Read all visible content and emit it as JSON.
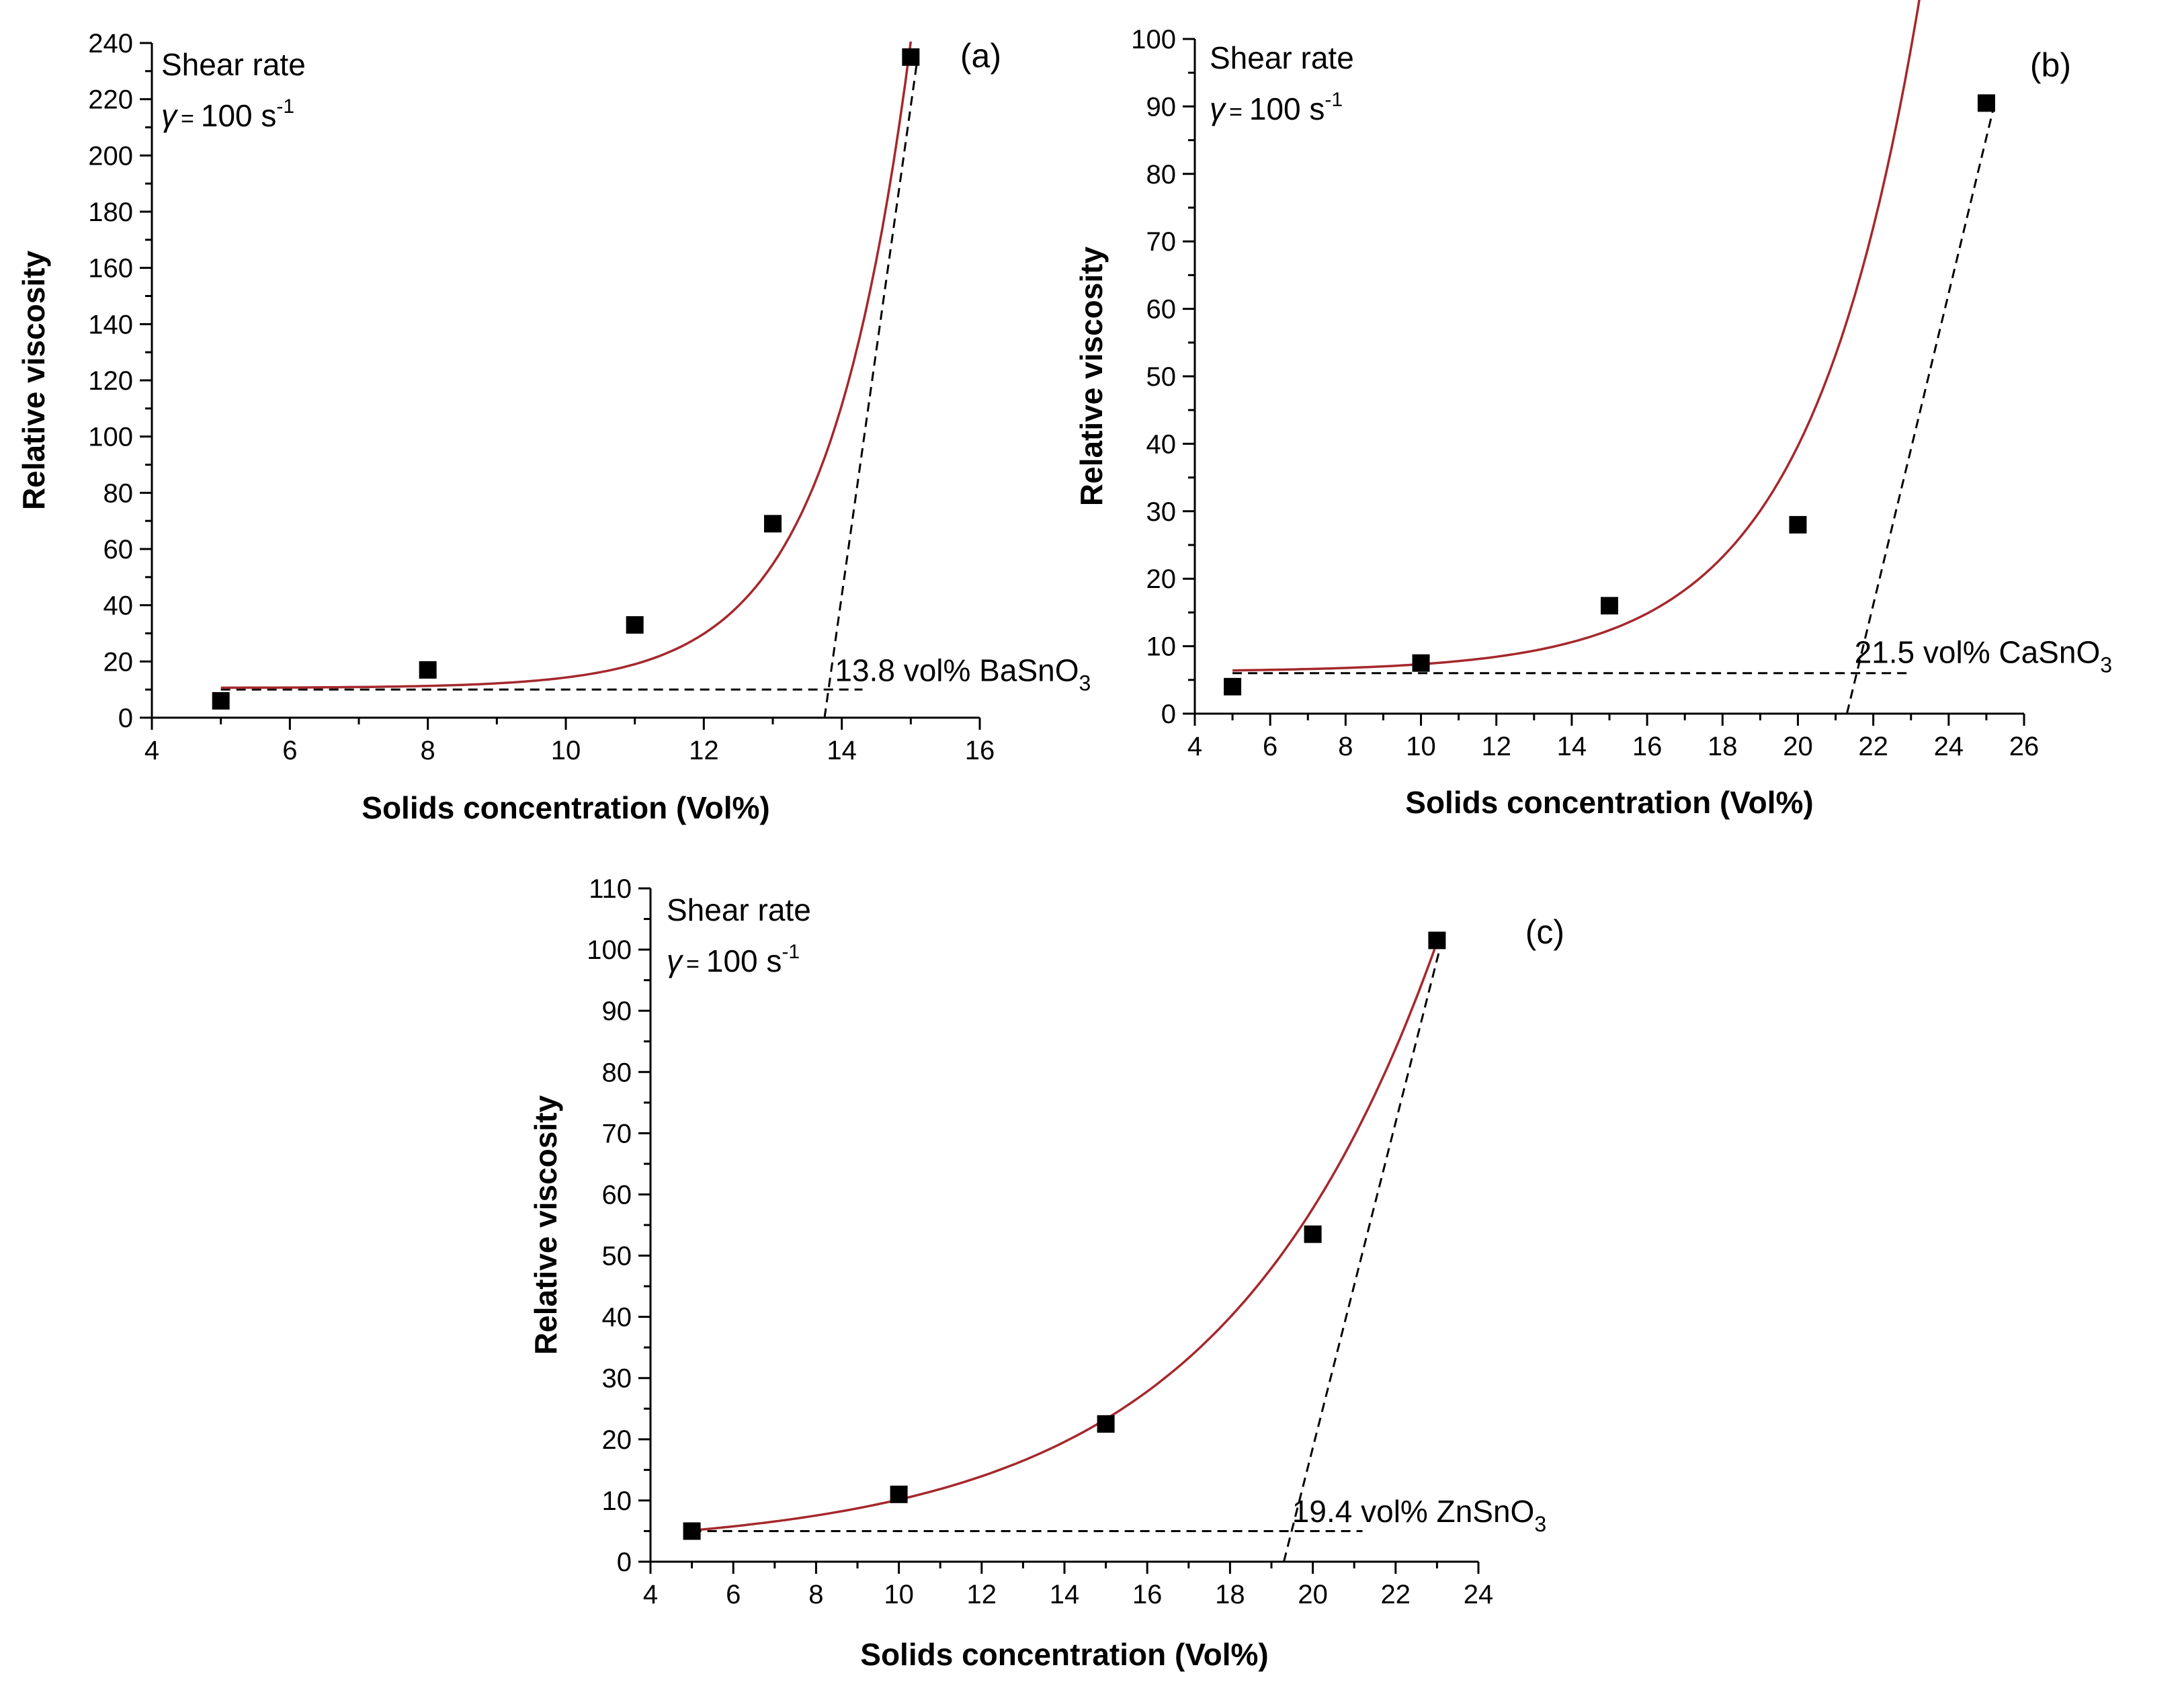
{
  "figure": {
    "axis_color": "#000000",
    "fit_color": "#a5282c",
    "marker_color": "#000000"
  },
  "chart_data": [
    {
      "type": "scatter",
      "panel_label": "(a)",
      "xlabel": "Solids concentration (Vol%)",
      "ylabel": "Relative viscosity",
      "xlim": [
        4,
        16
      ],
      "ylim": [
        0,
        240
      ],
      "xticks": [
        4,
        6,
        8,
        10,
        12,
        14,
        16
      ],
      "yticks": [
        0,
        20,
        40,
        60,
        80,
        100,
        120,
        140,
        160,
        180,
        200,
        220,
        240
      ],
      "points": [
        {
          "x": 5,
          "y": 6
        },
        {
          "x": 8,
          "y": 17
        },
        {
          "x": 11,
          "y": 33
        },
        {
          "x": 13,
          "y": 69
        },
        {
          "x": 15,
          "y": 235
        }
      ],
      "fit": {
        "type": "exponential",
        "y0": 10.6,
        "A": 0.00095,
        "t": 1.21,
        "x_range": [
          5,
          15
        ]
      },
      "baseline": {
        "y": 10,
        "x_range": [
          5,
          14.3
        ]
      },
      "steep_line": {
        "from": {
          "x": 13.75,
          "y": 0
        },
        "to": {
          "x": 15.1,
          "y": 235
        }
      },
      "annotation": {
        "text": "13.8 vol% BaSnO",
        "sub": "3",
        "x": 13.9,
        "y": 13
      },
      "shear_rate": {
        "line1": "Shear rate",
        "symbol": "γ",
        "eq": "=",
        "value": "100 s",
        "sup": "-1"
      }
    },
    {
      "type": "scatter",
      "panel_label": "(b)",
      "xlabel": "Solids concentration (Vol%)",
      "ylabel": "Relative viscosity",
      "xlim": [
        4,
        26
      ],
      "ylim": [
        0,
        100
      ],
      "xticks": [
        4,
        6,
        8,
        10,
        12,
        14,
        16,
        18,
        20,
        22,
        24,
        26
      ],
      "yticks": [
        0,
        10,
        20,
        30,
        40,
        50,
        60,
        70,
        80,
        90,
        100
      ],
      "points": [
        {
          "x": 5,
          "y": 4
        },
        {
          "x": 10,
          "y": 7.5
        },
        {
          "x": 15,
          "y": 16
        },
        {
          "x": 20,
          "y": 28
        },
        {
          "x": 25,
          "y": 90.5
        }
      ],
      "fit": {
        "type": "exponential",
        "y0": 6.2,
        "A": 0.0385,
        "t": 2.955,
        "x_range": [
          5,
          25
        ]
      },
      "baseline": {
        "y": 6,
        "x_range": [
          5,
          23
        ]
      },
      "steep_line": {
        "from": {
          "x": 21.3,
          "y": 0
        },
        "to": {
          "x": 25.2,
          "y": 90
        }
      },
      "annotation": {
        "text": "21.5 vol% CaSnO",
        "sub": "3",
        "x": 21.5,
        "y": 7.5
      },
      "shear_rate": {
        "line1": "Shear rate",
        "symbol": "γ",
        "eq": "=",
        "value": "100 s",
        "sup": "-1"
      }
    },
    {
      "type": "scatter",
      "panel_label": "(c)",
      "xlabel": "Solids concentration (Vol%)",
      "ylabel": "Relative viscosity",
      "xlim": [
        4,
        24
      ],
      "ylim": [
        0,
        110
      ],
      "xticks": [
        4,
        6,
        8,
        10,
        12,
        14,
        16,
        18,
        20,
        22,
        24
      ],
      "yticks": [
        0,
        10,
        20,
        30,
        40,
        50,
        60,
        70,
        80,
        90,
        100,
        110
      ],
      "points": [
        {
          "x": 5,
          "y": 5
        },
        {
          "x": 10,
          "y": 11
        },
        {
          "x": 15,
          "y": 22.5
        },
        {
          "x": 20,
          "y": 53.5
        },
        {
          "x": 23,
          "y": 101.5
        }
      ],
      "fit": {
        "type": "exponential",
        "y0": 2.0,
        "A": 1.19,
        "t": 5.2,
        "x_range": [
          5,
          23
        ]
      },
      "baseline": {
        "y": 5,
        "x_range": [
          5,
          21.2
        ]
      },
      "steep_line": {
        "from": {
          "x": 19.3,
          "y": 0
        },
        "to": {
          "x": 23.1,
          "y": 101
        }
      },
      "annotation": {
        "text": "19.4 vol% ZnSnO",
        "sub": "3",
        "x": 19.5,
        "y": 6.5
      },
      "shear_rate": {
        "line1": "Shear rate",
        "symbol": "γ",
        "eq": "=",
        "value": "100 s",
        "sup": "-1"
      }
    }
  ]
}
